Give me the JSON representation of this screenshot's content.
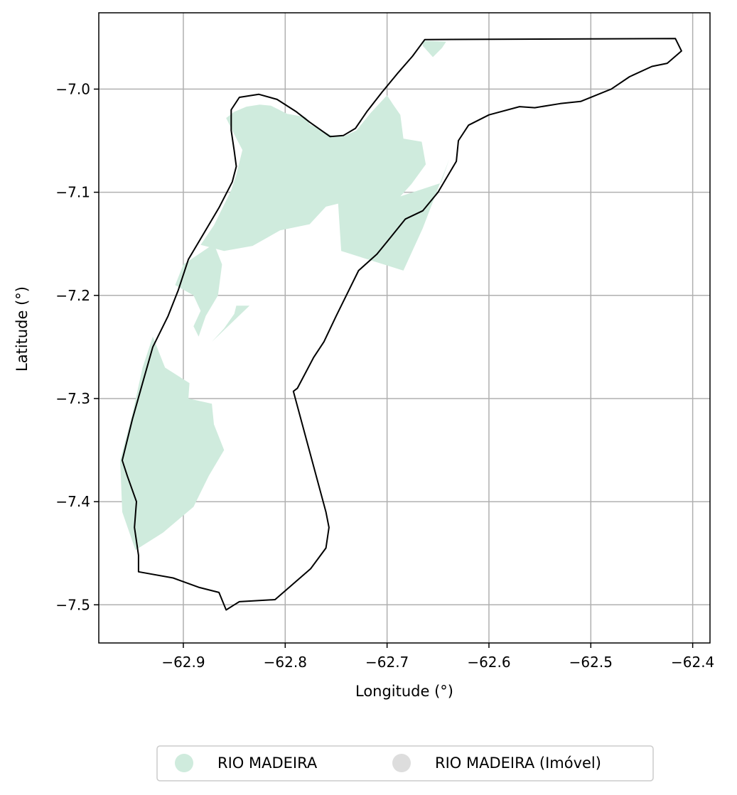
{
  "map": {
    "xlabel": "Longitude (°)",
    "ylabel": "Latitude (°)",
    "grid": true,
    "xlim": [
      -62.983,
      -62.383
    ],
    "ylim": [
      -7.537,
      -6.926
    ],
    "x_ticks": [
      -62.9,
      -62.8,
      -62.7,
      -62.6,
      -62.5,
      -62.4
    ],
    "y_ticks": [
      -7.0,
      -7.1,
      -7.2,
      -7.3,
      -7.4,
      -7.5
    ],
    "x_tick_labels": [
      "−62.9",
      "−62.8",
      "−62.7",
      "−62.6",
      "−62.5",
      "−62.4"
    ],
    "y_tick_labels": [
      "−7.0",
      "−7.1",
      "−7.2",
      "−7.3",
      "−7.4",
      "−7.5"
    ],
    "legend_position": "bottom-center, outside plot",
    "legend": [
      {
        "label": "RIO MADEIRA",
        "color": "#cfebdd"
      },
      {
        "label": "RIO MADEIRA (Imóvel)",
        "color": "#dddddd"
      }
    ],
    "colors": {
      "rio_madeira_fill": "#cfebdd",
      "boundary_stroke": "#000000",
      "grid": "#b0b0b0"
    }
  },
  "chart_data": {
    "type": "map",
    "xlabel": "Longitude (°)",
    "ylabel": "Latitude (°)",
    "xlim": [
      -62.983,
      -62.383
    ],
    "ylim": [
      -7.537,
      -6.926
    ],
    "layers": [
      {
        "name": "RIO MADEIRA",
        "geometry": "multipolygon",
        "fill": "#cfebdd",
        "polygons": [
          [
            [
              -62.665,
              -6.953
            ],
            [
              -62.642,
              -6.954
            ],
            [
              -62.646,
              -6.96
            ],
            [
              -62.655,
              -6.969
            ],
            [
              -62.665,
              -6.958
            ]
          ],
          [
            [
              -62.858,
              -7.028
            ],
            [
              -62.85,
              -7.022
            ],
            [
              -62.838,
              -7.017
            ],
            [
              -62.825,
              -7.015
            ],
            [
              -62.814,
              -7.016
            ],
            [
              -62.806,
              -7.02
            ],
            [
              -62.798,
              -7.024
            ],
            [
              -62.792,
              -7.025
            ],
            [
              -62.78,
              -7.027
            ],
            [
              -62.776,
              -7.034
            ],
            [
              -62.77,
              -7.037
            ],
            [
              -62.754,
              -7.045
            ],
            [
              -62.743,
              -7.046
            ],
            [
              -62.73,
              -7.04
            ],
            [
              -62.716,
              -7.023
            ],
            [
              -62.7,
              -7.006
            ],
            [
              -62.694,
              -7.015
            ],
            [
              -62.687,
              -7.025
            ],
            [
              -62.684,
              -7.048
            ],
            [
              -62.666,
              -7.051
            ],
            [
              -62.662,
              -7.073
            ],
            [
              -62.676,
              -7.092
            ],
            [
              -62.687,
              -7.104
            ],
            [
              -62.647,
              -7.091
            ],
            [
              -62.639,
              -7.068
            ],
            [
              -62.665,
              -7.135
            ],
            [
              -62.684,
              -7.176
            ],
            [
              -62.745,
              -7.157
            ],
            [
              -62.748,
              -7.111
            ],
            [
              -62.76,
              -7.114
            ],
            [
              -62.776,
              -7.131
            ],
            [
              -62.805,
              -7.137
            ],
            [
              -62.832,
              -7.152
            ],
            [
              -62.86,
              -7.157
            ],
            [
              -62.883,
              -7.151
            ],
            [
              -62.87,
              -7.132
            ],
            [
              -62.853,
              -7.098
            ],
            [
              -62.848,
              -7.083
            ],
            [
              -62.842,
              -7.059
            ],
            [
              -62.85,
              -7.044
            ]
          ],
          [
            [
              -62.87,
              -7.15
            ],
            [
              -62.9,
              -7.17
            ],
            [
              -62.908,
              -7.19
            ],
            [
              -62.89,
              -7.2
            ],
            [
              -62.883,
              -7.215
            ],
            [
              -62.89,
              -7.23
            ],
            [
              -62.885,
              -7.24
            ],
            [
              -62.878,
              -7.22
            ],
            [
              -62.866,
              -7.2
            ],
            [
              -62.862,
              -7.17
            ]
          ],
          [
            [
              -62.848,
              -7.21
            ],
            [
              -62.835,
              -7.21
            ],
            [
              -62.872,
              -7.245
            ],
            [
              -62.86,
              -7.232
            ],
            [
              -62.85,
              -7.218
            ]
          ],
          [
            [
              -62.93,
              -7.24
            ],
            [
              -62.918,
              -7.27
            ],
            [
              -62.894,
              -7.285
            ],
            [
              -62.895,
              -7.3
            ],
            [
              -62.872,
              -7.305
            ],
            [
              -62.87,
              -7.325
            ],
            [
              -62.86,
              -7.35
            ],
            [
              -62.875,
              -7.375
            ],
            [
              -62.89,
              -7.405
            ],
            [
              -62.92,
              -7.43
            ],
            [
              -62.947,
              -7.447
            ],
            [
              -62.96,
              -7.41
            ],
            [
              -62.962,
              -7.36
            ],
            [
              -62.95,
              -7.315
            ],
            [
              -62.94,
              -7.27
            ]
          ]
        ]
      },
      {
        "name": "RIO MADEIRA (Imóvel)",
        "geometry": "polygon",
        "fill": "none",
        "stroke": "#000000",
        "polygons": [
          [
            [
              -62.663,
              -6.952
            ],
            [
              -62.417,
              -6.951
            ],
            [
              -62.411,
              -6.963
            ],
            [
              -62.425,
              -6.975
            ],
            [
              -62.44,
              -6.978
            ],
            [
              -62.462,
              -6.988
            ],
            [
              -62.48,
              -7.0
            ],
            [
              -62.51,
              -7.012
            ],
            [
              -62.53,
              -7.014
            ],
            [
              -62.555,
              -7.018
            ],
            [
              -62.57,
              -7.017
            ],
            [
              -62.6,
              -7.025
            ],
            [
              -62.62,
              -7.035
            ],
            [
              -62.63,
              -7.05
            ],
            [
              -62.632,
              -7.07
            ],
            [
              -62.65,
              -7.1
            ],
            [
              -62.665,
              -7.118
            ],
            [
              -62.682,
              -7.126
            ],
            [
              -62.7,
              -7.148
            ],
            [
              -62.71,
              -7.16
            ],
            [
              -62.728,
              -7.176
            ],
            [
              -62.74,
              -7.2
            ],
            [
              -62.75,
              -7.22
            ],
            [
              -62.762,
              -7.245
            ],
            [
              -62.772,
              -7.26
            ],
            [
              -62.788,
              -7.29
            ],
            [
              -62.792,
              -7.293
            ],
            [
              -62.76,
              -7.41
            ],
            [
              -62.757,
              -7.425
            ],
            [
              -62.76,
              -7.445
            ],
            [
              -62.775,
              -7.465
            ],
            [
              -62.81,
              -7.495
            ],
            [
              -62.845,
              -7.497
            ],
            [
              -62.85,
              -7.5
            ],
            [
              -62.858,
              -7.505
            ],
            [
              -62.865,
              -7.488
            ],
            [
              -62.885,
              -7.483
            ],
            [
              -62.91,
              -7.474
            ],
            [
              -62.944,
              -7.468
            ],
            [
              -62.944,
              -7.452
            ],
            [
              -62.948,
              -7.425
            ],
            [
              -62.946,
              -7.4
            ],
            [
              -62.955,
              -7.375
            ],
            [
              -62.96,
              -7.36
            ],
            [
              -62.95,
              -7.32
            ],
            [
              -62.94,
              -7.285
            ],
            [
              -62.93,
              -7.25
            ],
            [
              -62.915,
              -7.22
            ],
            [
              -62.905,
              -7.195
            ],
            [
              -62.895,
              -7.165
            ],
            [
              -62.88,
              -7.14
            ],
            [
              -62.865,
              -7.115
            ],
            [
              -62.852,
              -7.09
            ],
            [
              -62.848,
              -7.075
            ],
            [
              -62.85,
              -7.06
            ],
            [
              -62.853,
              -7.04
            ],
            [
              -62.853,
              -7.02
            ],
            [
              -62.845,
              -7.008
            ],
            [
              -62.826,
              -7.005
            ],
            [
              -62.808,
              -7.01
            ],
            [
              -62.789,
              -7.022
            ],
            [
              -62.776,
              -7.032
            ],
            [
              -62.756,
              -7.046
            ],
            [
              -62.743,
              -7.045
            ],
            [
              -62.731,
              -7.038
            ],
            [
              -62.72,
              -7.022
            ],
            [
              -62.705,
              -7.003
            ],
            [
              -62.69,
              -6.985
            ],
            [
              -62.675,
              -6.968
            ]
          ]
        ]
      }
    ],
    "legend": [
      "RIO MADEIRA",
      "RIO MADEIRA (Imóvel)"
    ]
  }
}
